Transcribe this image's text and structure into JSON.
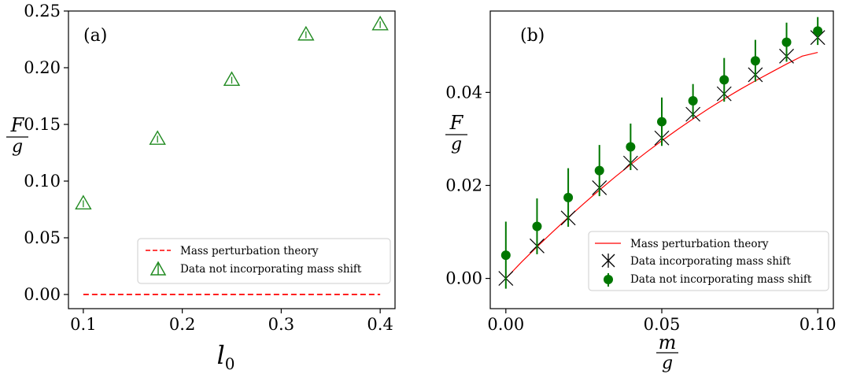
{
  "chart_data": [
    {
      "panel_label": "(a)",
      "type": "scatter",
      "xlabel": "l0",
      "ylabel_num": "F",
      "ylabel_den": "g",
      "xlim": [
        0.085,
        0.415
      ],
      "ylim": [
        -0.0125,
        0.25
      ],
      "xticks": [
        0.1,
        0.2,
        0.3,
        0.4
      ],
      "xtick_labels": [
        "0.1",
        "0.2",
        "0.3",
        "0.4"
      ],
      "yticks": [
        0.0,
        0.05,
        0.1,
        0.15,
        0.2,
        0.25
      ],
      "ytick_labels": [
        "0.00",
        "0.05",
        "0.10",
        "0.15",
        "0.20",
        "0.25"
      ],
      "legend_position": "lower-right",
      "series": [
        {
          "name": "Mass perturbation theory",
          "kind": "dashed-line",
          "color": "#ff0000",
          "x": [
            0.1,
            0.4
          ],
          "y": [
            0.0,
            0.0
          ]
        },
        {
          "name": "Data not incorporating mass shift",
          "kind": "triangle-errorbar",
          "color": "#228b22",
          "x": [
            0.1,
            0.175,
            0.25,
            0.325,
            0.4
          ],
          "y": [
            0.08,
            0.137,
            0.189,
            0.229,
            0.238
          ],
          "yerr": [
            0.003,
            0.003,
            0.003,
            0.003,
            0.003
          ]
        }
      ]
    },
    {
      "panel_label": "(b)",
      "type": "scatter",
      "xlabel_num": "m",
      "xlabel_den": "g",
      "ylabel_num": "F",
      "ylabel_den": "g",
      "xlim": [
        -0.005,
        0.105
      ],
      "ylim": [
        -0.0065,
        0.0575
      ],
      "xticks": [
        0.0,
        0.05,
        0.1
      ],
      "xtick_labels": [
        "0.00",
        "0.05",
        "0.10"
      ],
      "yticks": [
        0.0,
        0.02,
        0.04
      ],
      "ytick_labels": [
        "0.00",
        "0.02",
        "0.04"
      ],
      "legend_position": "lower-right",
      "series": [
        {
          "name": "Mass perturbation theory",
          "kind": "line",
          "color": "#ff0000",
          "x": [
            0.0,
            0.005,
            0.01,
            0.015,
            0.02,
            0.025,
            0.03,
            0.035,
            0.04,
            0.045,
            0.05,
            0.055,
            0.06,
            0.065,
            0.07,
            0.075,
            0.08,
            0.085,
            0.09,
            0.095,
            0.1
          ],
          "y": [
            0.0,
            0.0035,
            0.0068,
            0.01,
            0.0131,
            0.0161,
            0.019,
            0.0218,
            0.0245,
            0.0271,
            0.0296,
            0.032,
            0.0343,
            0.0365,
            0.0386,
            0.0406,
            0.0425,
            0.0443,
            0.0461,
            0.0478,
            0.0486
          ]
        },
        {
          "name": "Data incorporating mass shift",
          "kind": "x-marker",
          "color": "#000000",
          "x": [
            0.0,
            0.01,
            0.02,
            0.03,
            0.04,
            0.05,
            0.06,
            0.07,
            0.08,
            0.09,
            0.1
          ],
          "y": [
            0.0,
            0.007,
            0.013,
            0.0195,
            0.0248,
            0.0302,
            0.0353,
            0.0397,
            0.0438,
            0.0478,
            0.0518
          ],
          "yerr": [
            0.001,
            0.001,
            0.001,
            0.001,
            0.001,
            0.001,
            0.001,
            0.001,
            0.001,
            0.001,
            0.001
          ]
        },
        {
          "name": "Data not incorporating mass shift",
          "kind": "dot-errorbar",
          "color": "#007700",
          "x": [
            0.0,
            0.01,
            0.02,
            0.03,
            0.04,
            0.05,
            0.06,
            0.07,
            0.08,
            0.09,
            0.1
          ],
          "y": [
            0.005,
            0.0112,
            0.0174,
            0.0232,
            0.0283,
            0.0337,
            0.0382,
            0.0427,
            0.0468,
            0.0508,
            0.0532
          ],
          "yerr": [
            0.0072,
            0.006,
            0.0063,
            0.0055,
            0.005,
            0.0052,
            0.0036,
            0.0047,
            0.0045,
            0.0042,
            0.003
          ]
        }
      ]
    }
  ]
}
